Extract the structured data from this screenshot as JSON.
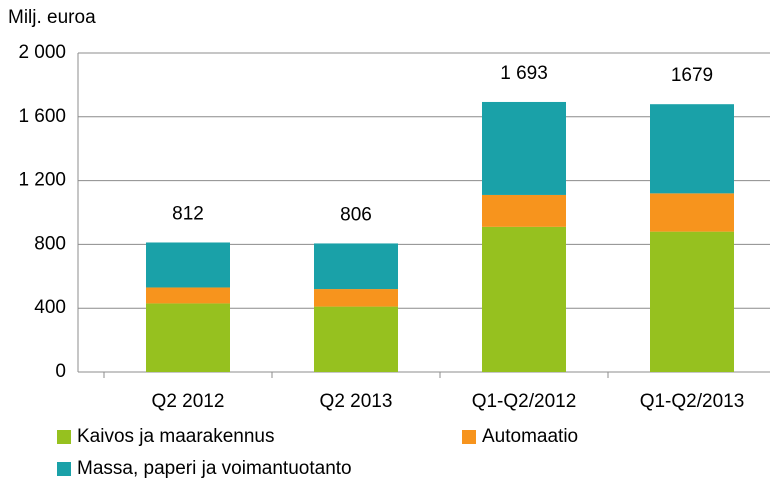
{
  "chart_data": {
    "type": "stacked_bar",
    "y_axis_label": "Milj. euroa",
    "categories": [
      "Q2 2012",
      "Q2 2013",
      "Q1-Q2/2012",
      "Q1-Q2/2013"
    ],
    "series": [
      {
        "name": "Kaivos ja maarakennus",
        "color": "#96c11f",
        "values": [
          430,
          410,
          910,
          880
        ]
      },
      {
        "name": "Automaatio",
        "color": "#f7941d",
        "values": [
          100,
          110,
          200,
          240
        ]
      },
      {
        "name": "Massa, paperi ja voimantuotanto",
        "color": "#1aa1a8",
        "values": [
          282,
          286,
          583,
          559
        ]
      }
    ],
    "totals": [
      812,
      806,
      1693,
      1679
    ],
    "totals_labels": [
      "812",
      "806",
      "1 693",
      "1679"
    ],
    "ylim": [
      0,
      2000
    ],
    "yticks": [
      0,
      400,
      800,
      {
        "value": 1200,
        "label": "1 200"
      },
      {
        "value": 1600,
        "label": "1 600"
      },
      {
        "value": 2000,
        "label": "2 000"
      }
    ],
    "grid": true
  }
}
